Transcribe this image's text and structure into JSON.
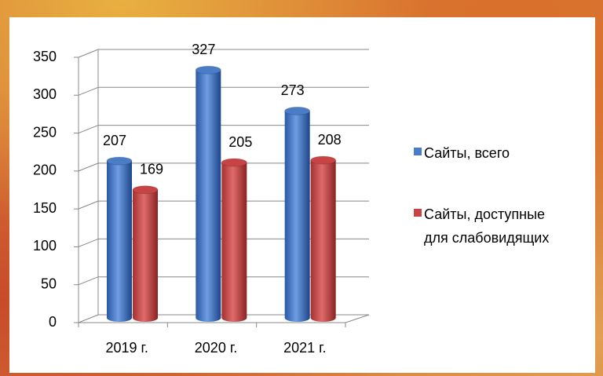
{
  "chart_data": {
    "type": "bar3d",
    "categories": [
      "2019 г.",
      "2020 г.",
      "2021 г."
    ],
    "series": [
      {
        "name": "Сайты, всего",
        "color": "#4a7cc8",
        "values": [
          207,
          327,
          273
        ]
      },
      {
        "name": "Сайты, доступные для слабовидящих",
        "color": "#c84444",
        "values": [
          169,
          205,
          208
        ]
      }
    ],
    "ylim": [
      0,
      350
    ],
    "yticks": [
      0,
      50,
      100,
      150,
      200,
      250,
      300,
      350
    ],
    "grid": true,
    "legend": "right"
  }
}
